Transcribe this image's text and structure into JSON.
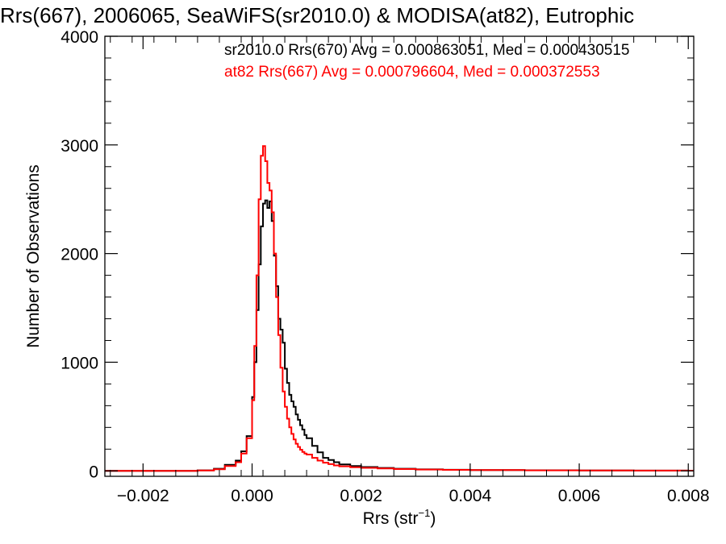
{
  "chart_data": {
    "type": "line",
    "title": "Rrs(667), 2006065, SeaWiFS(sr2010.0) & MODISA(at82), Eutrophic",
    "xlabel": "Rrs (str",
    "xlabel_sup": "−1",
    "xlabel_end": ")",
    "ylabel": "Number of Observations",
    "xlim": [
      -0.0027,
      0.0081
    ],
    "ylim": [
      -50,
      4000
    ],
    "xticks": [
      -0.002,
      0.0,
      0.002,
      0.004,
      0.006,
      0.008
    ],
    "xtick_labels": [
      "−0.002",
      "0.000",
      "0.002",
      "0.004",
      "0.006",
      "0.008"
    ],
    "yticks": [
      0,
      1000,
      2000,
      3000,
      4000
    ],
    "ytick_labels": [
      "0",
      "1000",
      "2000",
      "3000",
      "4000"
    ],
    "grid": false,
    "legend_position": "top-right",
    "series": [
      {
        "name": "sr2010.0 Rrs(670) Avg = 0.000863051, Med = 0.000430515",
        "color": "#000000",
        "x": [
          -0.0027,
          -0.001,
          -0.0007,
          -0.0005,
          -0.0003,
          -0.0002,
          -0.0001,
          0.0,
          4e-05,
          8e-05,
          0.00012,
          0.00016,
          0.0002,
          0.00024,
          0.00028,
          0.00032,
          0.00036,
          0.0004,
          0.00044,
          0.00048,
          0.00052,
          0.00056,
          0.0006,
          0.00064,
          0.00068,
          0.00072,
          0.00076,
          0.0008,
          0.00084,
          0.00088,
          0.00092,
          0.00096,
          0.001,
          0.0011,
          0.0012,
          0.0013,
          0.0014,
          0.0015,
          0.0016,
          0.0018,
          0.002,
          0.0023,
          0.0026,
          0.003,
          0.0035,
          0.004,
          0.005,
          0.006,
          0.007,
          0.008,
          0.0081
        ],
        "y": [
          0,
          5,
          20,
          55,
          95,
          180,
          320,
          680,
          1000,
          1480,
          1900,
          2250,
          2460,
          2490,
          2420,
          2480,
          2300,
          1980,
          1700,
          1400,
          1300,
          1180,
          940,
          810,
          700,
          640,
          590,
          520,
          470,
          420,
          380,
          330,
          300,
          230,
          170,
          120,
          100,
          80,
          60,
          45,
          35,
          27,
          20,
          14,
          10,
          8,
          6,
          4,
          3,
          2,
          2
        ]
      },
      {
        "name": "at82 Rrs(667) Avg = 0.000796604, Med = 0.000372553",
        "color": "#ff0000",
        "x": [
          -0.0027,
          -0.001,
          -0.0007,
          -0.0005,
          -0.0003,
          -0.0002,
          -0.0001,
          0.0,
          4e-05,
          8e-05,
          0.00012,
          0.00016,
          0.0002,
          0.00024,
          0.00028,
          0.00032,
          0.00036,
          0.0004,
          0.00044,
          0.00048,
          0.00052,
          0.00056,
          0.0006,
          0.00064,
          0.00068,
          0.00072,
          0.00076,
          0.0008,
          0.00084,
          0.00088,
          0.00092,
          0.00096,
          0.001,
          0.0011,
          0.0012,
          0.0013,
          0.0014,
          0.0015,
          0.0016,
          0.0018,
          0.002,
          0.0023,
          0.0026,
          0.003,
          0.0035,
          0.004,
          0.005,
          0.006,
          0.007,
          0.008,
          0.0081
        ],
        "y": [
          0,
          4,
          15,
          45,
          80,
          160,
          300,
          650,
          1150,
          1800,
          2500,
          2900,
          2990,
          2850,
          2650,
          2580,
          2380,
          2000,
          1600,
          1250,
          950,
          730,
          590,
          480,
          400,
          340,
          290,
          250,
          220,
          195,
          175,
          160,
          150,
          120,
          95,
          75,
          62,
          50,
          42,
          34,
          28,
          22,
          17,
          12,
          9,
          7,
          5,
          4,
          3,
          2,
          2
        ]
      }
    ]
  }
}
